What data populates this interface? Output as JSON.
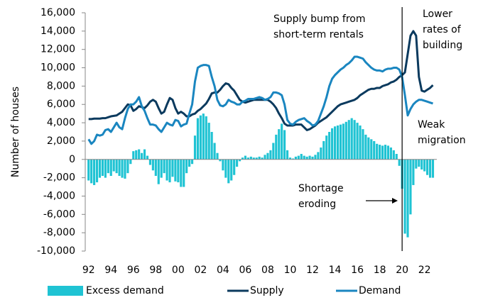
{
  "chart_data": {
    "type": "combo",
    "y_label": "Number of houses",
    "xlim": [
      1991.7,
      2023.1
    ],
    "xticks": [
      {
        "value": 1992,
        "label": "92"
      },
      {
        "value": 1994,
        "label": "94"
      },
      {
        "value": 1996,
        "label": "96"
      },
      {
        "value": 1998,
        "label": "98"
      },
      {
        "value": 2000,
        "label": "00"
      },
      {
        "value": 2002,
        "label": "02"
      },
      {
        "value": 2004,
        "label": "04"
      },
      {
        "value": 2006,
        "label": "06"
      },
      {
        "value": 2008,
        "label": "08"
      },
      {
        "value": 2010,
        "label": "10"
      },
      {
        "value": 2012,
        "label": "12"
      },
      {
        "value": 2014,
        "label": "14"
      },
      {
        "value": 2016,
        "label": "16"
      },
      {
        "value": 2018,
        "label": "18"
      },
      {
        "value": 2020,
        "label": "20"
      },
      {
        "value": 2022,
        "label": "22"
      }
    ],
    "ylim": [
      -10000,
      16000
    ],
    "yticks": [
      {
        "value": 16000,
        "label": "16,000"
      },
      {
        "value": 14000,
        "label": "14,000"
      },
      {
        "value": 12000,
        "label": "12,000"
      },
      {
        "value": 10000,
        "label": "10,000"
      },
      {
        "value": 8000,
        "label": "8,000"
      },
      {
        "value": 6000,
        "label": "6,000"
      },
      {
        "value": 4000,
        "label": "4,000"
      },
      {
        "value": 2000,
        "label": "2,000"
      },
      0,
      {
        "value": -2000,
        "label": "-2,000"
      },
      {
        "value": -4000,
        "label": "-4,000"
      },
      {
        "value": -6000,
        "label": "-6,000"
      },
      {
        "value": -8000,
        "label": "-8,000"
      },
      {
        "value": -10000,
        "label": "-10,000"
      }
    ],
    "vline_x": 2020,
    "annotations": [
      [
        "Supply bump from",
        "short-term rentals"
      ],
      [
        "Lower",
        "rates of",
        "building"
      ],
      [
        "Weak",
        "migration"
      ],
      [
        "Shortage",
        "eroding"
      ]
    ],
    "x": [
      1992,
      1992.25,
      1992.5,
      1992.75,
      1993,
      1993.25,
      1993.5,
      1993.75,
      1994,
      1994.25,
      1994.5,
      1994.75,
      1995,
      1995.25,
      1995.5,
      1995.75,
      1996,
      1996.25,
      1996.5,
      1996.75,
      1997,
      1997.25,
      1997.5,
      1997.75,
      1998,
      1998.25,
      1998.5,
      1998.75,
      1999,
      1999.25,
      1999.5,
      1999.75,
      2000,
      2000.25,
      2000.5,
      2000.75,
      2001,
      2001.25,
      2001.5,
      2001.75,
      2002,
      2002.25,
      2002.5,
      2002.75,
      2003,
      2003.25,
      2003.5,
      2003.75,
      2004,
      2004.25,
      2004.5,
      2004.75,
      2005,
      2005.25,
      2005.5,
      2005.75,
      2006,
      2006.25,
      2006.5,
      2006.75,
      2007,
      2007.25,
      2007.5,
      2007.75,
      2008,
      2008.25,
      2008.5,
      2008.75,
      2009,
      2009.25,
      2009.5,
      2009.75,
      2010,
      2010.25,
      2010.5,
      2010.75,
      2011,
      2011.25,
      2011.5,
      2011.75,
      2012,
      2012.25,
      2012.5,
      2012.75,
      2013,
      2013.25,
      2013.5,
      2013.75,
      2014,
      2014.25,
      2014.5,
      2014.75,
      2015,
      2015.25,
      2015.5,
      2015.75,
      2016,
      2016.25,
      2016.5,
      2016.75,
      2017,
      2017.25,
      2017.5,
      2017.75,
      2018,
      2018.25,
      2018.5,
      2018.75,
      2019,
      2019.25,
      2019.5,
      2019.75,
      2020,
      2020.25,
      2020.5,
      2020.75,
      2021,
      2021.25,
      2021.5,
      2021.75,
      2022,
      2022.25,
      2022.5,
      2022.75
    ],
    "series": [
      {
        "name": "Excess demand",
        "type": "bar",
        "color": "#1fc3d3",
        "values": [
          -2300,
          -2600,
          -2800,
          -2500,
          -2000,
          -1800,
          -2000,
          -1500,
          -1800,
          -1300,
          -1500,
          -1800,
          -2000,
          -2100,
          -1500,
          -500,
          900,
          1000,
          1100,
          700,
          1100,
          400,
          -600,
          -1200,
          -1800,
          -2700,
          -2000,
          -1500,
          -2300,
          -2500,
          -1900,
          -2400,
          -2500,
          -3000,
          -3000,
          -1500,
          -800,
          -500,
          2600,
          4500,
          4800,
          5000,
          4700,
          4000,
          3000,
          1800,
          700,
          -200,
          -1200,
          -2000,
          -2600,
          -2300,
          -1700,
          -800,
          -200,
          200,
          400,
          200,
          300,
          200,
          200,
          300,
          200,
          500,
          700,
          1000,
          1800,
          2700,
          3300,
          3900,
          3200,
          1000,
          200,
          100,
          300,
          400,
          600,
          400,
          300,
          400,
          300,
          500,
          800,
          1300,
          2000,
          2600,
          3000,
          3400,
          3600,
          3700,
          3800,
          3900,
          4100,
          4300,
          4500,
          4300,
          4000,
          3700,
          3300,
          2700,
          2400,
          2200,
          2000,
          1700,
          1600,
          1500,
          1600,
          1500,
          1300,
          1000,
          600,
          -700,
          -3200,
          -8100,
          -8500,
          -6000,
          -2800,
          -1000,
          -800,
          -1100,
          -1300,
          -1700,
          -2000,
          -2000
        ]
      },
      {
        "name": "Supply",
        "type": "line",
        "color": "#0b3a5e",
        "values": [
          4400,
          4400,
          4450,
          4450,
          4450,
          4500,
          4500,
          4600,
          4700,
          4750,
          4800,
          5000,
          5200,
          5600,
          6000,
          5900,
          5300,
          5500,
          5800,
          5700,
          5600,
          5900,
          6300,
          6500,
          6300,
          5600,
          5000,
          5200,
          6000,
          6700,
          6500,
          5600,
          5000,
          5200,
          5000,
          4700,
          4700,
          4900,
          5000,
          5300,
          5500,
          5800,
          6100,
          6600,
          7200,
          7300,
          7300,
          7600,
          8000,
          8300,
          8200,
          7800,
          7500,
          7000,
          6500,
          6300,
          6200,
          6300,
          6400,
          6500,
          6500,
          6500,
          6500,
          6500,
          6500,
          6300,
          6000,
          5600,
          5000,
          4500,
          3900,
          3700,
          3700,
          3700,
          3800,
          3800,
          3800,
          3500,
          3200,
          3300,
          3500,
          3700,
          4000,
          4200,
          4400,
          4600,
          4900,
          5200,
          5500,
          5800,
          6000,
          6100,
          6200,
          6300,
          6400,
          6500,
          6700,
          7000,
          7200,
          7400,
          7600,
          7700,
          7700,
          7800,
          7800,
          8000,
          8100,
          8200,
          8400,
          8500,
          8700,
          9000,
          9200,
          9500,
          11500,
          13500,
          14000,
          13500,
          9000,
          7500,
          7400,
          7600,
          7800,
          8100
        ]
      },
      {
        "name": "Demand",
        "type": "line",
        "color": "#1a86c0",
        "values": [
          2200,
          1700,
          2000,
          2700,
          2600,
          2700,
          3200,
          3300,
          3000,
          3500,
          4000,
          3500,
          3300,
          4500,
          5500,
          6000,
          6000,
          6300,
          6800,
          5800,
          5300,
          4500,
          3800,
          3800,
          3700,
          3300,
          3000,
          3500,
          4000,
          3800,
          3700,
          4300,
          4200,
          3600,
          3800,
          3900,
          5000,
          6000,
          8500,
          10000,
          10200,
          10300,
          10300,
          10200,
          9000,
          8000,
          6500,
          5900,
          5800,
          6000,
          6500,
          6300,
          6200,
          6000,
          6000,
          6300,
          6400,
          6600,
          6600,
          6600,
          6700,
          6800,
          6700,
          6500,
          6600,
          6800,
          7300,
          7300,
          7200,
          7000,
          6000,
          4300,
          3900,
          3800,
          4100,
          4300,
          4400,
          4500,
          4200,
          4000,
          3700,
          3800,
          4200,
          5000,
          5800,
          6800,
          8000,
          8800,
          9200,
          9500,
          9800,
          10000,
          10300,
          10500,
          10800,
          11200,
          11200,
          11100,
          11000,
          10600,
          10300,
          10000,
          9800,
          9700,
          9700,
          9600,
          9800,
          9900,
          9900,
          10000,
          10000,
          9800,
          9000,
          7000,
          4800,
          5500,
          6000,
          6300,
          6500,
          6500,
          6400,
          6300,
          6200,
          6100
        ]
      }
    ]
  }
}
